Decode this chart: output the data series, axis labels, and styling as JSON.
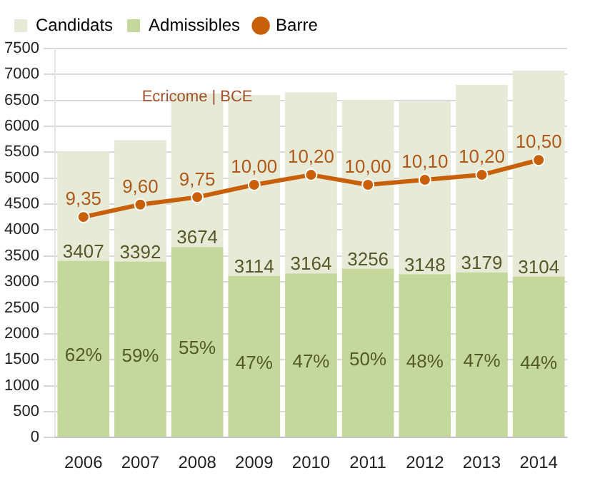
{
  "chart_data": {
    "type": "bar",
    "stacked": true,
    "categories": [
      "2006",
      "2007",
      "2008",
      "2009",
      "2010",
      "2011",
      "2012",
      "2013",
      "2014"
    ],
    "series": [
      {
        "name": "Admissibles",
        "color": "#c5d89b",
        "values": [
          3407,
          3392,
          3674,
          3114,
          3164,
          3256,
          3148,
          3179,
          3104
        ],
        "value_labels": [
          "3407",
          "3392",
          "3674",
          "3114",
          "3164",
          "3256",
          "3148",
          "3179",
          "3104"
        ]
      },
      {
        "name": "Candidats",
        "color": "#e6ead6",
        "values": [
          2110,
          2340,
          2960,
          3490,
          3490,
          3250,
          3330,
          3620,
          3970
        ]
      },
      {
        "name": "Barre",
        "type": "line",
        "axis": "y2",
        "color": "#c8600a",
        "values": [
          9.35,
          9.6,
          9.75,
          10.0,
          10.2,
          10.0,
          10.1,
          10.2,
          10.5
        ],
        "value_labels": [
          "9,35",
          "9,60",
          "9,75",
          "10,00",
          "10,20",
          "10,00",
          "10,10",
          "10,20",
          "10,50"
        ]
      }
    ],
    "ylim": [
      0,
      7500
    ],
    "yticks": [
      0,
      500,
      1000,
      1500,
      2000,
      2500,
      3000,
      3500,
      4000,
      4500,
      5000,
      5500,
      6000,
      6500,
      7000,
      7500
    ],
    "y2lim": [
      4.9,
      12.75
    ],
    "tick_labels": "xy",
    "grid": "y",
    "legend": "top left",
    "marker": "circle",
    "line_style": "solid",
    "annotations": [
      "Ecricome | BCE",
      "62%",
      "59%",
      "55%",
      "47%",
      "47%",
      "50%",
      "48%",
      "47%",
      "44%"
    ]
  }
}
